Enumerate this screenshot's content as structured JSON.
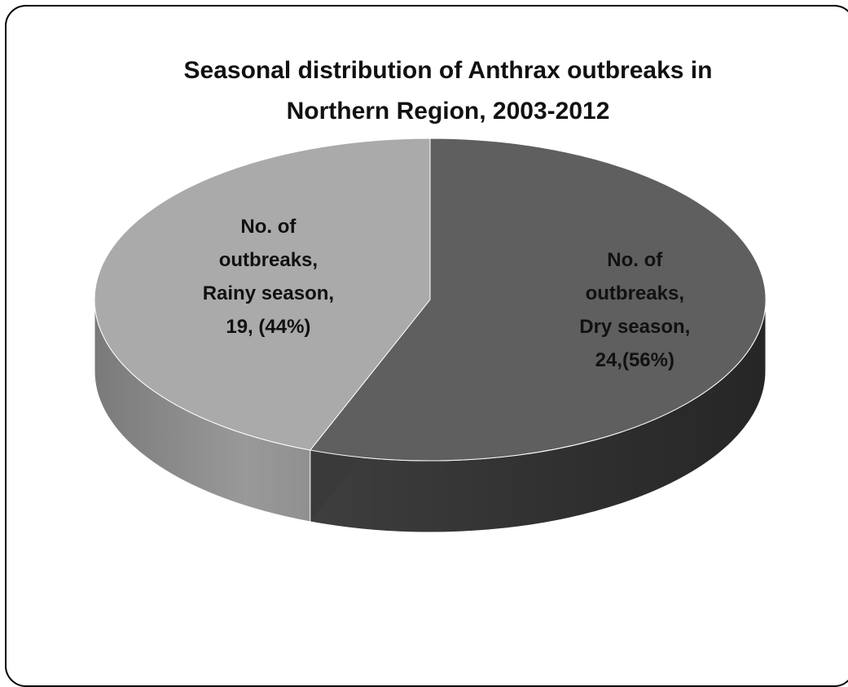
{
  "chart_data": {
    "type": "pie",
    "style": "3d",
    "title_lines": [
      "Seasonal distribution of Anthrax  outbreaks in",
      "Northern Region, 2003-2012"
    ],
    "slices": [
      {
        "label_lines": [
          "No. of",
          "outbreaks,",
          "Dry season,",
          "24,(56%)"
        ],
        "value": 24,
        "percent": 56,
        "top_color": "#5f5f5f",
        "side_color": "#343434",
        "label_color": "#111111"
      },
      {
        "label_lines": [
          "No. of",
          "outbreaks,",
          "Rainy season,",
          "19, (44%)"
        ],
        "value": 19,
        "percent": 44,
        "top_color": "#aaaaaa",
        "side_color": "#8c8c8c",
        "label_color": "#111111"
      }
    ],
    "start_angle": "12 o'clock, clockwise",
    "legend": "none"
  }
}
